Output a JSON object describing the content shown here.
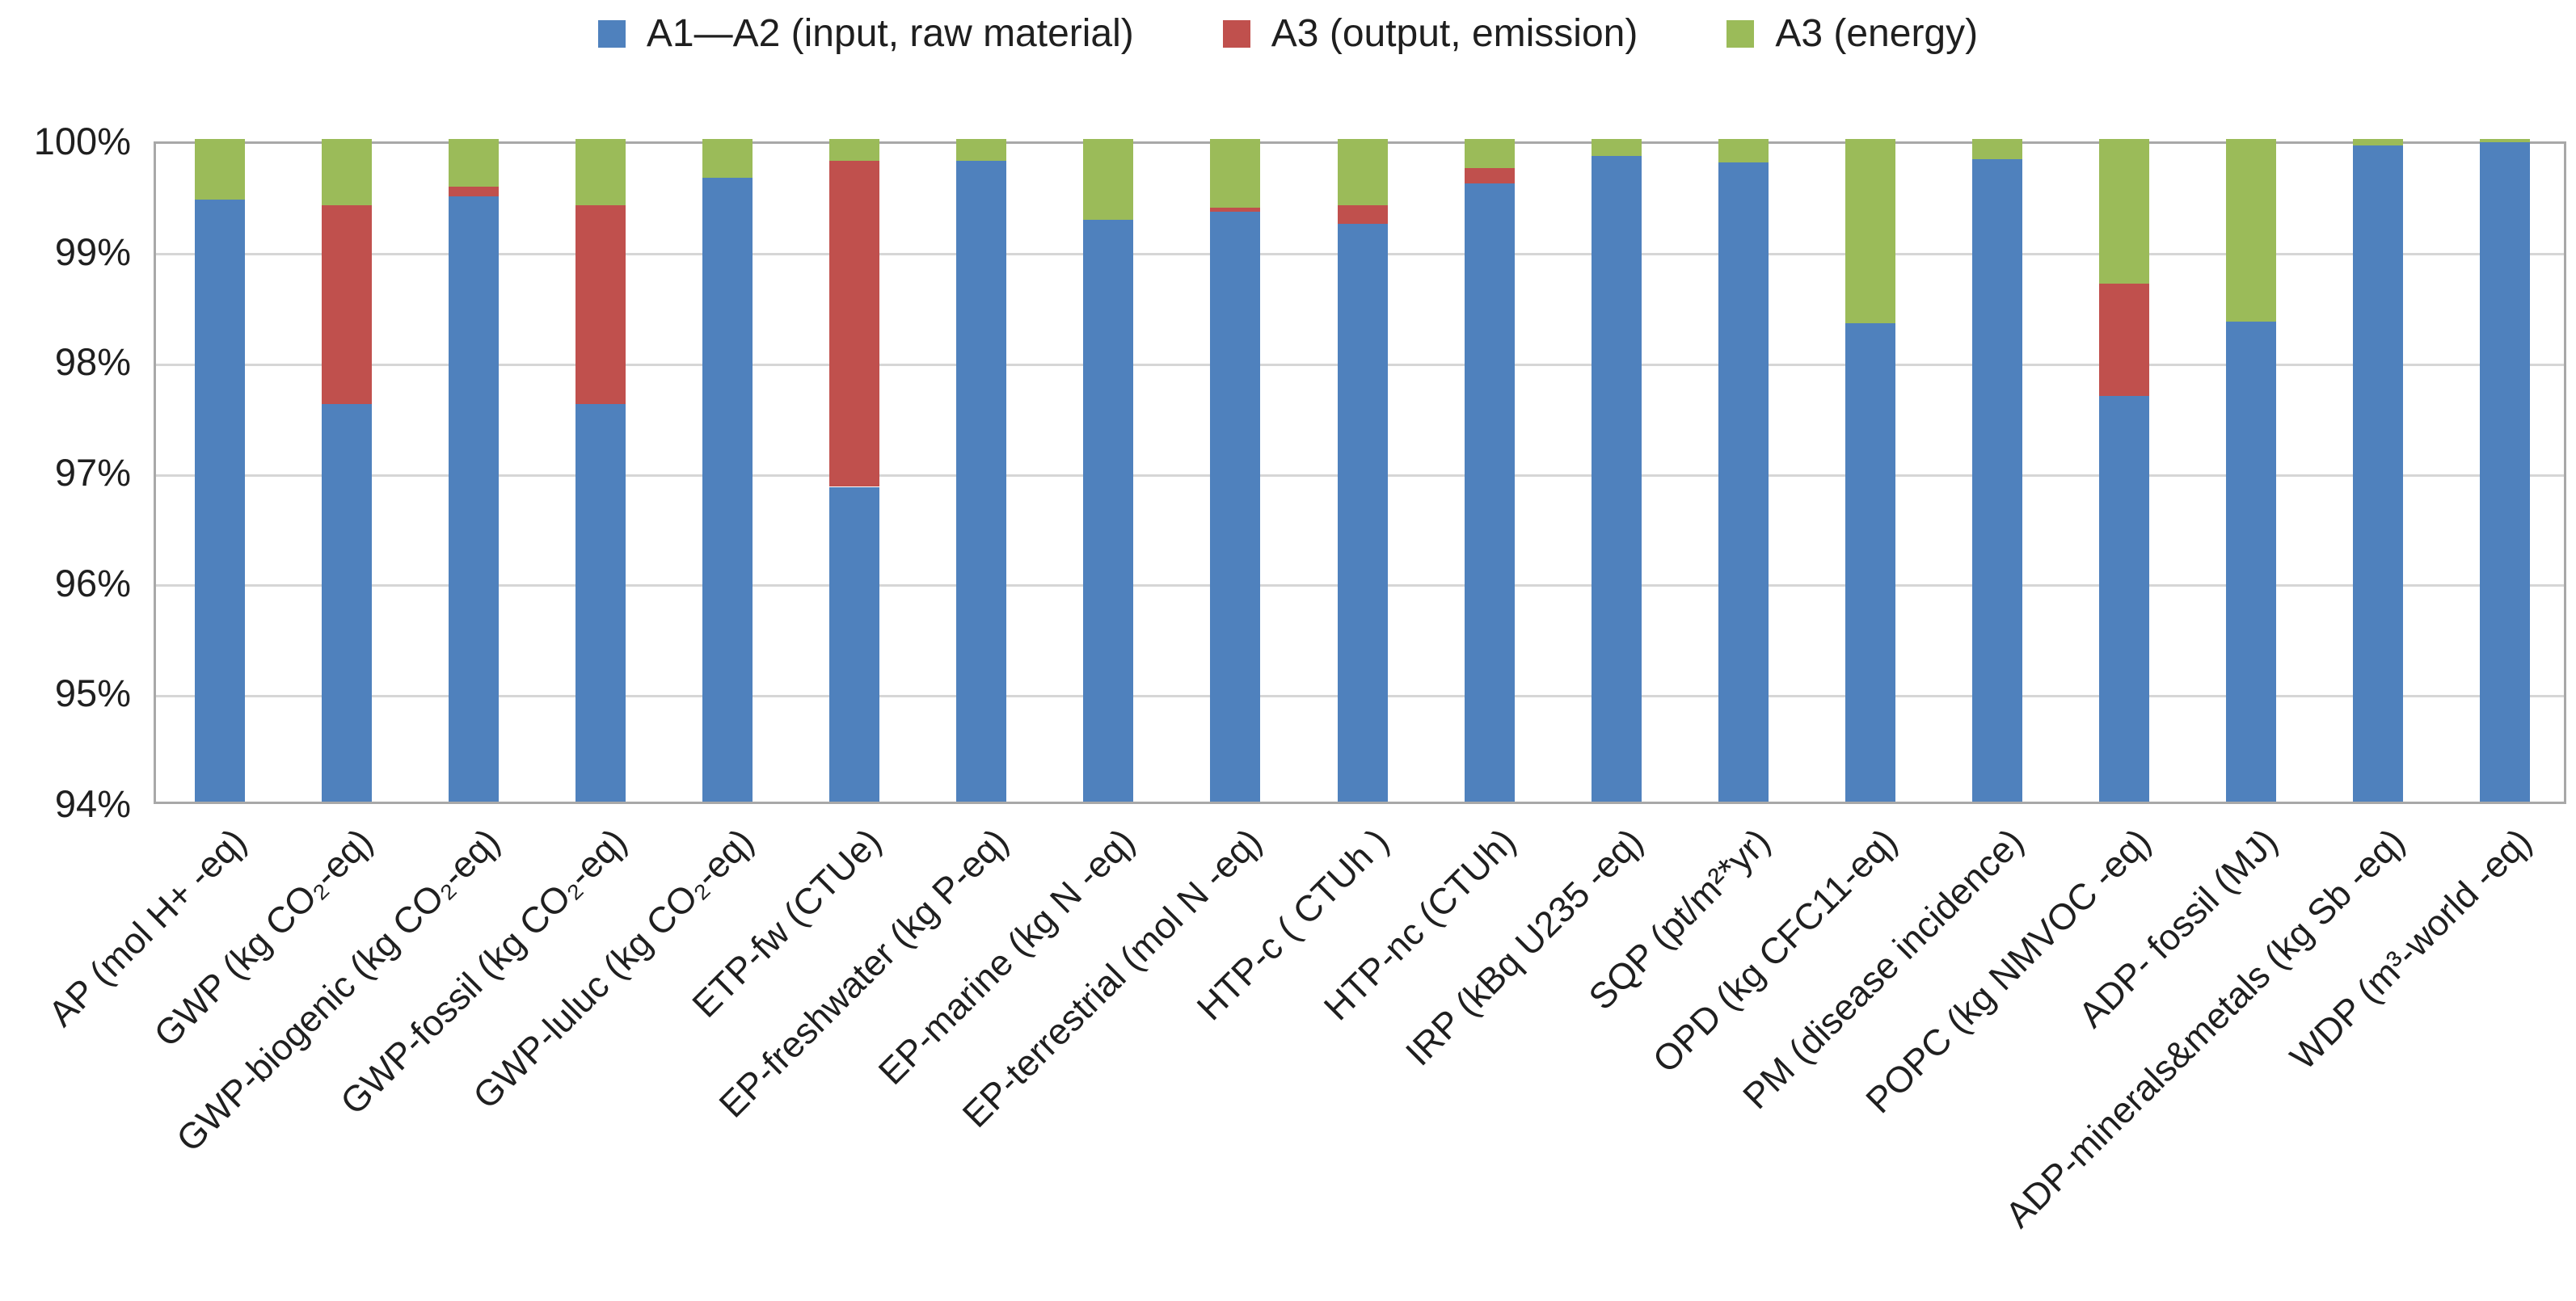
{
  "chart_data": {
    "type": "bar",
    "variant": "stacked-percent-column",
    "title": "",
    "xlabel": "",
    "ylabel": "",
    "ylim": [
      94,
      100
    ],
    "grid": true,
    "legend_position": "top",
    "yticks": [
      "100%",
      "99%",
      "98%",
      "97%",
      "96%",
      "95%",
      "94%"
    ],
    "categories": [
      "AP (mol H+ -eq)",
      "GWP (kg CO₂-eq)",
      "GWP-biogenic (kg CO₂-eq)",
      "GWP-fossil (kg CO₂-eq)",
      "GWP-luluc (kg CO₂-eq)",
      "ETP-fw (CTUe)",
      "EP-freshwater (kg P-eq)",
      "EP-marine (kg N -eq)",
      "EP-terrestrial (mol N -eq)",
      "HTP-c ( CTUh )",
      "HTP-nc (CTUh)",
      "IRP (kBq U235 -eq)",
      "SQP (pt/m²*yr)",
      "OPD (kg CFC11-eq)",
      "PM (disease incidence)",
      "POPC (kg NMVOC -eq)",
      "ADP- fossil (MJ)",
      "ADP-minerals&metals (kg Sb -eq)",
      "WDP (m³-world -eq)"
    ],
    "series": [
      {
        "name": "A1—A2 (input, raw material)",
        "color": "#4F81BD",
        "values": [
          99.45,
          97.6,
          99.48,
          97.6,
          99.65,
          96.85,
          99.8,
          99.27,
          99.34,
          99.23,
          99.6,
          99.85,
          99.79,
          98.33,
          99.82,
          97.67,
          98.35,
          99.94,
          99.97
        ]
      },
      {
        "name": "A3 (output, emission)",
        "color": "#C0504D",
        "values": [
          0,
          1.8,
          0.09,
          1.8,
          0,
          2.95,
          0,
          0,
          0.04,
          0.17,
          0.14,
          0,
          0,
          0,
          0,
          1.02,
          0,
          0,
          0
        ]
      },
      {
        "name": "A3 (energy)",
        "color": "#9BBB59",
        "values": [
          0.55,
          0.6,
          0.43,
          0.6,
          0.35,
          0.2,
          0.2,
          0.73,
          0.62,
          0.6,
          0.26,
          0.15,
          0.21,
          1.67,
          0.18,
          1.31,
          1.65,
          0.06,
          0.03
        ]
      }
    ]
  },
  "colors": {
    "gridline": "#d6d6d6",
    "plot_border": "#a8a8a8",
    "text": "#1f1f1f",
    "background": "#ffffff"
  }
}
